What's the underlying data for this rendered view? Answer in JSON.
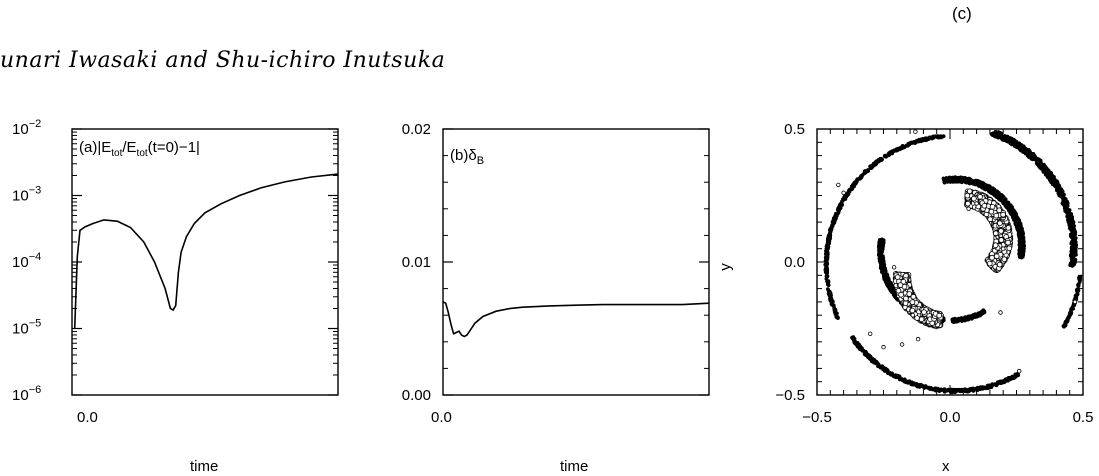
{
  "page": {
    "panel_tag": "(c)",
    "authors": "unari Iwasaki and Shu-ichiro Inutsuka"
  },
  "chart_data": [
    {
      "type": "line",
      "panel_label": "(a)|E_tot/E_tot(t=0)−1|",
      "label_parts": {
        "prefix": "(a)|E",
        "sub1": "tot",
        "mid": "/E",
        "sub2": "tot",
        "suffix": "(t=0)−1|"
      },
      "xlabel": "time",
      "x_tick_labels": [
        "0.0"
      ],
      "y_scale": "log",
      "ylim": [
        1e-06,
        0.01
      ],
      "y_tick_labels": [
        {
          "value": 1e-06,
          "base": "10",
          "exp": "−6"
        },
        {
          "value": 1e-05,
          "base": "10",
          "exp": "−5"
        },
        {
          "value": 0.0001,
          "base": "10",
          "exp": "−4"
        },
        {
          "value": 0.001,
          "base": "10",
          "exp": "−3"
        },
        {
          "value": 0.01,
          "base": "10",
          "exp": "−2"
        }
      ],
      "x": [
        0.01,
        0.02,
        0.03,
        0.05,
        0.08,
        0.12,
        0.17,
        0.22,
        0.27,
        0.31,
        0.35,
        0.37,
        0.38,
        0.39,
        0.4,
        0.41,
        0.43,
        0.46,
        0.5,
        0.56,
        0.63,
        0.71,
        0.8,
        0.9,
        1.0
      ],
      "y": [
        1e-05,
        0.00012,
        0.0003,
        0.00034,
        0.00038,
        0.00043,
        0.00041,
        0.00033,
        0.0002,
        0.0001,
        4e-05,
        2e-05,
        1.9e-05,
        2.2e-05,
        7e-05,
        0.00014,
        0.00024,
        0.00038,
        0.00055,
        0.00075,
        0.001,
        0.0013,
        0.0016,
        0.0019,
        0.0021
      ]
    },
    {
      "type": "line",
      "panel_label": "(b)δ_B",
      "label_parts": {
        "prefix": "(b)δ",
        "sub1": "B"
      },
      "xlabel": "time",
      "x_tick_labels": [
        "0.0"
      ],
      "ylim": [
        0,
        0.02
      ],
      "y_ticks": [
        0.0,
        0.01,
        0.02
      ],
      "y_tick_labels": [
        "0.00",
        "0.01",
        "0.02"
      ],
      "x": [
        0.0,
        0.01,
        0.02,
        0.03,
        0.04,
        0.05,
        0.06,
        0.07,
        0.08,
        0.09,
        0.1,
        0.12,
        0.15,
        0.2,
        0.25,
        0.3,
        0.4,
        0.5,
        0.6,
        0.7,
        0.8,
        0.9,
        1.0
      ],
      "y": [
        0.007,
        0.0069,
        0.0062,
        0.0053,
        0.0046,
        0.0047,
        0.0048,
        0.0045,
        0.0044,
        0.0045,
        0.0048,
        0.0054,
        0.0059,
        0.0063,
        0.0065,
        0.0066,
        0.0067,
        0.00675,
        0.0068,
        0.0068,
        0.0068,
        0.0068,
        0.0069
      ]
    },
    {
      "type": "scatter",
      "xlabel": "x",
      "ylabel": "y",
      "xlim": [
        -0.5,
        0.5
      ],
      "ylim": [
        -0.5,
        0.5
      ],
      "x_ticks": [
        -0.5,
        0.0,
        0.5
      ],
      "x_tick_labels": [
        "−0.5",
        "0.0",
        "0.5"
      ],
      "y_ticks": [
        -0.5,
        0.0,
        0.5
      ],
      "y_tick_labels": [
        "−0.5",
        "0.0",
        "0.5"
      ],
      "arcs": [
        {
          "cx": 0.02,
          "cy": -0.01,
          "r": 0.485,
          "from_deg": 95,
          "to_deg": 205,
          "width": 0.008
        },
        {
          "cx": 0.02,
          "cy": -0.01,
          "r": 0.475,
          "from_deg": 215,
          "to_deg": 300,
          "width": 0.01
        },
        {
          "cx": 0.02,
          "cy": -0.01,
          "r": 0.47,
          "from_deg": 330,
          "to_deg": 355,
          "width": 0.006
        },
        {
          "cx": 0.0,
          "cy": 0.05,
          "r": 0.465,
          "from_deg": -8,
          "to_deg": 70,
          "width": 0.02
        },
        {
          "cx": 0.02,
          "cy": 0.06,
          "r": 0.25,
          "from_deg": -10,
          "to_deg": 100,
          "width": 0.018
        },
        {
          "cx": 0.0,
          "cy": 0.04,
          "r": 0.26,
          "from_deg": 170,
          "to_deg": 265,
          "width": 0.016
        },
        {
          "cx": 0.0,
          "cy": 0.04,
          "r": 0.26,
          "from_deg": 272,
          "to_deg": 300,
          "width": 0.012
        },
        {
          "cx": 0.05,
          "cy": 0.09,
          "r": 0.15,
          "from_deg": -45,
          "to_deg": 85,
          "width": 0.055,
          "hollow": true
        },
        {
          "cx": -0.02,
          "cy": -0.06,
          "r": 0.16,
          "from_deg": 175,
          "to_deg": 265,
          "width": 0.05,
          "hollow": true
        }
      ],
      "scatter_points": [
        {
          "x": -0.42,
          "y": 0.29
        },
        {
          "x": -0.4,
          "y": 0.26
        },
        {
          "x": 0.26,
          "y": -0.41
        },
        {
          "x": 0.47,
          "y": -0.15
        },
        {
          "x": 0.07,
          "y": 0.2
        },
        {
          "x": 0.1,
          "y": 0.22
        },
        {
          "x": -0.13,
          "y": 0.49
        },
        {
          "x": -0.21,
          "y": -0.02
        },
        {
          "x": -0.14,
          "y": -0.2
        },
        {
          "x": -0.3,
          "y": -0.27
        },
        {
          "x": -0.25,
          "y": -0.32
        },
        {
          "x": -0.18,
          "y": -0.31
        },
        {
          "x": -0.12,
          "y": -0.29
        },
        {
          "x": 0.19,
          "y": -0.19
        },
        {
          "x": 0.2,
          "y": 0.05
        }
      ]
    }
  ]
}
